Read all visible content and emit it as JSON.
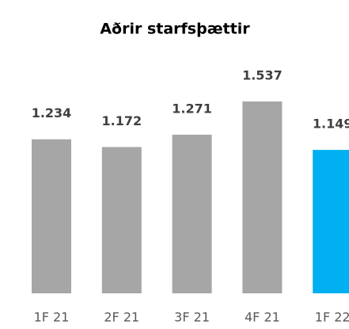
{
  "chart_data": {
    "type": "bar",
    "title": "Aðrir starfsþættir",
    "categories": [
      "1F 21",
      "2F 21",
      "3F 21",
      "4F 21",
      "1F 22"
    ],
    "values": [
      1.234,
      1.172,
      1.271,
      1.537,
      1.149
    ],
    "colors": [
      "#a6a6a6",
      "#a6a6a6",
      "#a6a6a6",
      "#a6a6a6",
      "#00b0f0"
    ]
  }
}
